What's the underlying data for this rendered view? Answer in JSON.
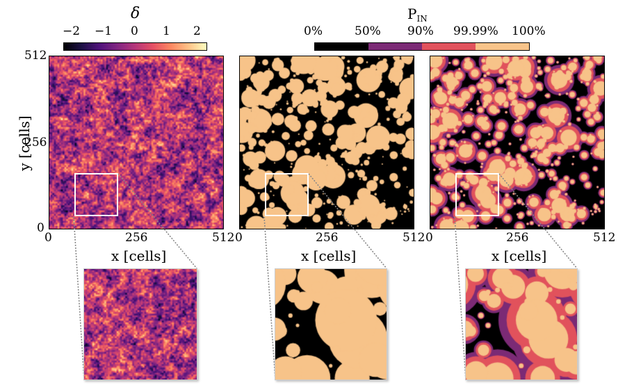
{
  "colorbar_delta": {
    "label": "δ",
    "ticks": [
      "−2",
      "−1",
      "0",
      "1",
      "2"
    ],
    "colormap": "magma"
  },
  "colorbar_pin": {
    "label_main": "P",
    "label_sub": "IN",
    "ticks": [
      "0%",
      "50%",
      "90%",
      "99.99%",
      "100%"
    ],
    "bin_colors": [
      "#000000",
      "#7b2a75",
      "#e1525c",
      "#f7c389"
    ]
  },
  "axes": {
    "ylabel": "y [cells]",
    "xlabel": "x [cells]",
    "y_ticks": [
      "512",
      "256",
      "0"
    ],
    "x_ticks": [
      "0",
      "256",
      "512"
    ]
  },
  "panels": [
    {
      "name": "density-field",
      "colormap": "magma"
    },
    {
      "name": "binary-ionization-map",
      "colors": [
        "#000000",
        "#f7c389"
      ]
    },
    {
      "name": "probability-map",
      "colors": [
        "#000000",
        "#7b2a75",
        "#e1525c",
        "#f7c389"
      ]
    }
  ],
  "inset": {
    "region_x": [
      64,
      192
    ],
    "region_y": [
      32,
      160
    ]
  }
}
